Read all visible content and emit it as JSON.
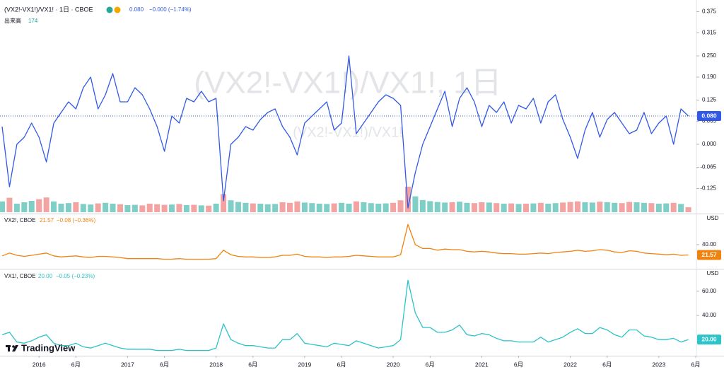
{
  "branding": "TradingView",
  "chart_data": {
    "type": "line",
    "x": [
      "2015-08",
      "2015-09",
      "2015-10",
      "2015-11",
      "2015-12",
      "2016-01",
      "2016-02",
      "2016-03",
      "2016-04",
      "2016-05",
      "2016-06",
      "2016-07",
      "2016-08",
      "2016-09",
      "2016-10",
      "2016-11",
      "2016-12",
      "2017-01",
      "2017-02",
      "2017-03",
      "2017-04",
      "2017-05",
      "2017-06",
      "2017-07",
      "2017-08",
      "2017-09",
      "2017-10",
      "2017-11",
      "2017-12",
      "2018-01",
      "2018-02",
      "2018-03",
      "2018-04",
      "2018-05",
      "2018-06",
      "2018-07",
      "2018-08",
      "2018-09",
      "2018-10",
      "2018-11",
      "2018-12",
      "2019-01",
      "2019-02",
      "2019-03",
      "2019-04",
      "2019-05",
      "2019-06",
      "2019-07",
      "2019-08",
      "2019-09",
      "2019-10",
      "2019-11",
      "2019-12",
      "2020-01",
      "2020-02",
      "2020-03",
      "2020-04",
      "2020-05",
      "2020-06",
      "2020-07",
      "2020-08",
      "2020-09",
      "2020-10",
      "2020-11",
      "2020-12",
      "2021-01",
      "2021-02",
      "2021-03",
      "2021-04",
      "2021-05",
      "2021-06",
      "2021-07",
      "2021-08",
      "2021-09",
      "2021-10",
      "2021-11",
      "2021-12",
      "2022-01",
      "2022-02",
      "2022-03",
      "2022-04",
      "2022-05",
      "2022-06",
      "2022-07",
      "2022-08",
      "2022-09",
      "2022-10",
      "2022-11",
      "2022-12",
      "2023-01",
      "2023-02",
      "2023-03",
      "2023-04",
      "2023-05"
    ],
    "xlim": [
      "2015-08",
      "2023-06"
    ],
    "xticks": [
      {
        "value": "2016-01",
        "label": "2016"
      },
      {
        "value": "2016-06",
        "label": "6月"
      },
      {
        "value": "2017-01",
        "label": "2017"
      },
      {
        "value": "2017-06",
        "label": "6月"
      },
      {
        "value": "2018-01",
        "label": "2018"
      },
      {
        "value": "2018-06",
        "label": "6月"
      },
      {
        "value": "2019-01",
        "label": "2019"
      },
      {
        "value": "2019-06",
        "label": "6月"
      },
      {
        "value": "2020-01",
        "label": "2020"
      },
      {
        "value": "2020-06",
        "label": "6月"
      },
      {
        "value": "2021-01",
        "label": "2021"
      },
      {
        "value": "2021-06",
        "label": "6月"
      },
      {
        "value": "2022-01",
        "label": "2022"
      },
      {
        "value": "2022-06",
        "label": "6月"
      },
      {
        "value": "2023-01",
        "label": "2023"
      },
      {
        "value": "2023-06",
        "label": "6月"
      }
    ],
    "panes": [
      {
        "legend": {
          "name": "(VX2!-VX1!)/VX1! · 1日 · CBOE",
          "value": "0.080",
          "change": "−0.000 (−1.74%)"
        },
        "watermark": "(VX2!-VX1!)/VX1!, 1日",
        "watermark_small": "(VX2!-VX1!)/VX1!",
        "ylim": [
          -0.192,
          0.398
        ],
        "yticks": [
          {
            "value": 0.375,
            "label": "0.375"
          },
          {
            "value": 0.315,
            "label": "0.315"
          },
          {
            "value": 0.25,
            "label": "0.250"
          },
          {
            "value": 0.19,
            "label": "0.190"
          },
          {
            "value": 0.125,
            "label": "0.125"
          },
          {
            "value": 0.065,
            "label": "0.065"
          },
          {
            "value": 0,
            "label": "0.000"
          },
          {
            "value": -0.065,
            "label": "-0.065"
          },
          {
            "value": -0.125,
            "label": "-0.125"
          }
        ],
        "price_label": "0.080",
        "series": [
          {
            "color": "#3159e6",
            "values": [
              0.05,
              -0.12,
              0.0,
              0.02,
              0.06,
              0.02,
              -0.05,
              0.06,
              0.09,
              0.12,
              0.1,
              0.16,
              0.19,
              0.1,
              0.14,
              0.2,
              0.12,
              0.12,
              0.16,
              0.14,
              0.1,
              0.05,
              -0.02,
              0.08,
              0.06,
              0.13,
              0.12,
              0.15,
              0.12,
              0.13,
              -0.16,
              0.0,
              0.02,
              0.05,
              0.04,
              0.07,
              0.09,
              0.1,
              0.05,
              0.02,
              -0.03,
              0.06,
              0.08,
              0.1,
              0.12,
              0.04,
              0.06,
              0.25,
              0.03,
              0.06,
              0.09,
              0.12,
              0.14,
              0.13,
              0.11,
              -0.18,
              -0.08,
              0.0,
              0.05,
              0.1,
              0.15,
              0.05,
              0.13,
              0.16,
              0.12,
              0.05,
              0.11,
              0.09,
              0.12,
              0.06,
              0.11,
              0.1,
              0.13,
              0.06,
              0.12,
              0.14,
              0.07,
              0.02,
              -0.04,
              0.04,
              0.09,
              0.02,
              0.07,
              0.09,
              0.06,
              0.03,
              0.04,
              0.09,
              0.03,
              0.06,
              0.08,
              0.0,
              0.1,
              0.08
            ]
          }
        ],
        "volume": {
          "name": "出来高",
          "up_color": "#7fcfc6",
          "down_color": "#f3a3a1",
          "ylim": [
            0,
            1000
          ],
          "values": [
            380,
            510,
            300,
            350,
            400,
            460,
            520,
            380,
            300,
            320,
            350,
            290,
            270,
            310,
            330,
            300,
            280,
            250,
            260,
            240,
            300,
            280,
            260,
            270,
            290,
            250,
            260,
            240,
            230,
            300,
            640,
            420,
            360,
            330,
            310,
            300,
            280,
            290,
            350,
            330,
            380,
            340,
            320,
            300,
            290,
            310,
            330,
            300,
            380,
            350,
            320,
            300,
            310,
            330,
            420,
            900,
            560,
            430,
            390,
            360,
            340,
            350,
            370,
            330,
            320,
            350,
            340,
            320,
            300,
            310,
            290,
            300,
            310,
            330,
            300,
            320,
            340,
            360,
            380,
            350,
            340,
            370,
            350,
            330,
            320,
            360,
            350,
            330,
            320,
            300,
            310,
            330,
            290,
            174
          ]
        }
      },
      {
        "legend": {
          "name": "VX2!, CBOE",
          "value": "21.57",
          "change": "−0.08 (−0.36%)"
        },
        "unit": "USD",
        "ylim": [
          -0.5,
          91.6
        ],
        "yticks": [
          {
            "value": 40,
            "label": "40.00"
          }
        ],
        "price_label": "21.57",
        "series": [
          {
            "color": "#f0820f",
            "values": [
              20,
              25,
              21,
              19,
              21,
              23,
              25,
              20,
              18,
              19,
              20,
              18,
              17,
              19,
              19,
              18,
              17,
              15,
              15,
              15,
              15,
              15,
              14,
              14,
              15,
              14,
              14,
              14,
              14,
              15,
              30,
              22,
              19,
              18,
              18,
              17,
              17,
              18,
              21,
              21,
              23,
              19,
              18,
              18,
              17,
              18,
              18,
              19,
              21,
              20,
              19,
              18,
              18,
              18,
              22,
              76,
              40,
              33,
              33,
              30,
              32,
              31,
              31,
              28,
              27,
              28,
              27,
              25,
              24,
              24,
              23,
              23,
              24,
              25,
              24,
              26,
              27,
              28,
              30,
              28,
              29,
              31,
              30,
              27,
              26,
              29,
              28,
              25,
              24,
              23,
              22,
              23,
              21,
              21.57
            ]
          }
        ]
      },
      {
        "legend": {
          "name": "VX1!, CBOE",
          "value": "20.00",
          "change": "−0.05 (−0.23%)"
        },
        "unit": "USD",
        "ylim": [
          8.4,
          76.8
        ],
        "yticks": [
          {
            "value": 60,
            "label": "60.00"
          },
          {
            "value": 40,
            "label": "40.00"
          }
        ],
        "price_label": "20.00",
        "series": [
          {
            "color": "#2cc3c9",
            "values": [
              24,
              26,
              18,
              17,
              19,
              22,
              24,
              17,
              15,
              15,
              17,
              14,
              13,
              15,
              17,
              15,
              13,
              12,
              12,
              12,
              12,
              11,
              11,
              11,
              12,
              11,
              11,
              11,
              11,
              13,
              33,
              20,
              17,
              15,
              15,
              14,
              13,
              13,
              20,
              20,
              25,
              17,
              16,
              15,
              14,
              17,
              16,
              15,
              19,
              17,
              15,
              13,
              14,
              15,
              20,
              69,
              42,
              30,
              30,
              26,
              26,
              28,
              32,
              24,
              23,
              25,
              24,
              21,
              19,
              19,
              18,
              18,
              18,
              22,
              18,
              20,
              22,
              26,
              29,
              25,
              25,
              30,
              28,
              24,
              22,
              28,
              28,
              23,
              22,
              20,
              20,
              21,
              18,
              20
            ]
          }
        ]
      }
    ]
  }
}
